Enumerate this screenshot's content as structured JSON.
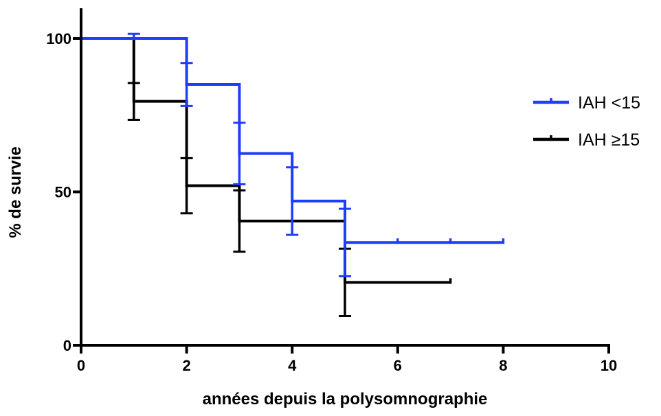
{
  "chart_data": {
    "type": "line",
    "subtype": "kaplan-meier step curves with error bars",
    "xlabel": "années depuis la polysomnographie",
    "ylabel": "% de survie",
    "xlim": [
      0,
      10
    ],
    "ylim": [
      0,
      100
    ],
    "x_ticks": [
      "0",
      "2",
      "4",
      "6",
      "8",
      "10"
    ],
    "y_ticks": [
      "0",
      "50",
      "100"
    ],
    "grid": false,
    "legend_position": "right",
    "series": [
      {
        "name": "IAH <15",
        "color": "#1f3cff",
        "steps": [
          {
            "x": 0,
            "y": 100
          },
          {
            "x": 2,
            "y": 85
          },
          {
            "x": 3,
            "y": 62.5
          },
          {
            "x": 4,
            "y": 47
          },
          {
            "x": 5,
            "y": 33.5
          }
        ],
        "x_end": 8,
        "error_bars": [
          {
            "x": 1,
            "y": 100,
            "plus": 1.5,
            "minus": 0
          },
          {
            "x": 2,
            "y": 85,
            "plus": 7,
            "minus": 7
          },
          {
            "x": 3,
            "y": 62.5,
            "plus": 10,
            "minus": 10
          },
          {
            "x": 4,
            "y": 47,
            "plus": 11,
            "minus": 11
          },
          {
            "x": 5,
            "y": 33.5,
            "plus": 11,
            "minus": 11
          }
        ],
        "censor_marks": [
          {
            "x": 6,
            "y": 33.5
          },
          {
            "x": 7,
            "y": 33.5
          },
          {
            "x": 8,
            "y": 33.5
          }
        ]
      },
      {
        "name": "IAH ≥15",
        "color": "#000000",
        "steps": [
          {
            "x": 0,
            "y": 100
          },
          {
            "x": 1,
            "y": 79.5
          },
          {
            "x": 2,
            "y": 52
          },
          {
            "x": 3,
            "y": 40.5
          },
          {
            "x": 5,
            "y": 20.5
          }
        ],
        "x_end": 7,
        "error_bars": [
          {
            "x": 1,
            "y": 79.5,
            "plus": 6,
            "minus": 6
          },
          {
            "x": 2,
            "y": 52,
            "plus": 9,
            "minus": 9
          },
          {
            "x": 3,
            "y": 40.5,
            "plus": 10,
            "minus": 10
          },
          {
            "x": 5,
            "y": 20.5,
            "plus": 11,
            "minus": 11
          }
        ],
        "censor_marks": [
          {
            "x": 7,
            "y": 20.5
          }
        ]
      }
    ]
  }
}
